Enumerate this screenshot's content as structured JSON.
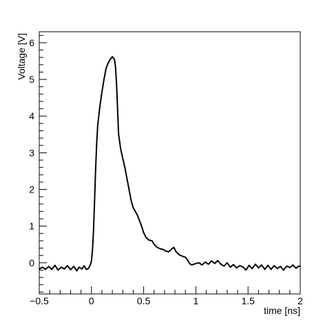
{
  "chart_data": {
    "type": "line",
    "xlabel": "time [ns]",
    "ylabel": "Voltage [V]",
    "xlim": [
      -0.5,
      2
    ],
    "ylim": [
      -0.85,
      6.3
    ],
    "xticks": [
      -0.5,
      0,
      0.5,
      1,
      1.5,
      2
    ],
    "xtick_labels": [
      "−0.5",
      "0",
      "0.5",
      "1",
      "1.5",
      "2"
    ],
    "yticks": [
      0,
      1,
      2,
      3,
      4,
      5,
      6
    ],
    "ytick_labels": [
      "0",
      "1",
      "2",
      "3",
      "4",
      "5",
      "6"
    ],
    "grid": false,
    "series": [
      {
        "color": "#000000",
        "points": [
          [
            -0.5,
            -0.17
          ],
          [
            -0.47,
            -0.12
          ],
          [
            -0.44,
            -0.18
          ],
          [
            -0.41,
            -0.1
          ],
          [
            -0.38,
            -0.18
          ],
          [
            -0.35,
            -0.07
          ],
          [
            -0.32,
            -0.2
          ],
          [
            -0.29,
            -0.12
          ],
          [
            -0.26,
            -0.17
          ],
          [
            -0.23,
            -0.08
          ],
          [
            -0.2,
            -0.19
          ],
          [
            -0.17,
            -0.1
          ],
          [
            -0.14,
            -0.22
          ],
          [
            -0.12,
            -0.12
          ],
          [
            -0.09,
            -0.17
          ],
          [
            -0.07,
            -0.08
          ],
          [
            -0.05,
            -0.18
          ],
          [
            -0.03,
            -0.16
          ],
          [
            -0.01,
            -0.05
          ],
          [
            0.0,
            0.05
          ],
          [
            0.01,
            0.35
          ],
          [
            0.02,
            0.9
          ],
          [
            0.03,
            1.7
          ],
          [
            0.04,
            2.55
          ],
          [
            0.05,
            3.25
          ],
          [
            0.06,
            3.75
          ],
          [
            0.08,
            4.25
          ],
          [
            0.1,
            4.65
          ],
          [
            0.12,
            5.0
          ],
          [
            0.14,
            5.3
          ],
          [
            0.16,
            5.45
          ],
          [
            0.18,
            5.55
          ],
          [
            0.2,
            5.62
          ],
          [
            0.22,
            5.55
          ],
          [
            0.23,
            5.35
          ],
          [
            0.24,
            4.9
          ],
          [
            0.25,
            4.2
          ],
          [
            0.26,
            3.5
          ],
          [
            0.28,
            3.1
          ],
          [
            0.3,
            2.85
          ],
          [
            0.32,
            2.6
          ],
          [
            0.34,
            2.3
          ],
          [
            0.36,
            2.0
          ],
          [
            0.38,
            1.7
          ],
          [
            0.4,
            1.5
          ],
          [
            0.42,
            1.4
          ],
          [
            0.44,
            1.3
          ],
          [
            0.46,
            1.15
          ],
          [
            0.48,
            1.0
          ],
          [
            0.5,
            0.82
          ],
          [
            0.52,
            0.7
          ],
          [
            0.55,
            0.62
          ],
          [
            0.58,
            0.6
          ],
          [
            0.6,
            0.5
          ],
          [
            0.63,
            0.42
          ],
          [
            0.66,
            0.38
          ],
          [
            0.69,
            0.36
          ],
          [
            0.71,
            0.32
          ],
          [
            0.74,
            0.3
          ],
          [
            0.77,
            0.38
          ],
          [
            0.79,
            0.42
          ],
          [
            0.81,
            0.3
          ],
          [
            0.84,
            0.22
          ],
          [
            0.87,
            0.18
          ],
          [
            0.9,
            0.15
          ],
          [
            0.92,
            0.08
          ],
          [
            0.94,
            -0.02
          ],
          [
            0.96,
            -0.06
          ],
          [
            0.98,
            -0.04
          ],
          [
            1.0,
            -0.02
          ],
          [
            1.03,
            0.0
          ],
          [
            1.06,
            -0.06
          ],
          [
            1.09,
            0.02
          ],
          [
            1.12,
            -0.04
          ],
          [
            1.15,
            0.05
          ],
          [
            1.18,
            -0.02
          ],
          [
            1.21,
            0.06
          ],
          [
            1.24,
            -0.04
          ],
          [
            1.27,
            -0.09
          ],
          [
            1.3,
            0.0
          ],
          [
            1.33,
            -0.12
          ],
          [
            1.36,
            -0.05
          ],
          [
            1.39,
            -0.14
          ],
          [
            1.42,
            -0.08
          ],
          [
            1.45,
            -0.11
          ],
          [
            1.48,
            -0.2
          ],
          [
            1.51,
            -0.07
          ],
          [
            1.54,
            -0.16
          ],
          [
            1.57,
            -0.04
          ],
          [
            1.6,
            -0.14
          ],
          [
            1.63,
            -0.06
          ],
          [
            1.66,
            -0.18
          ],
          [
            1.69,
            -0.07
          ],
          [
            1.72,
            -0.18
          ],
          [
            1.75,
            -0.08
          ],
          [
            1.78,
            -0.16
          ],
          [
            1.81,
            -0.1
          ],
          [
            1.84,
            -0.2
          ],
          [
            1.87,
            -0.09
          ],
          [
            1.9,
            -0.13
          ],
          [
            1.93,
            -0.06
          ],
          [
            1.96,
            -0.15
          ],
          [
            1.98,
            -0.1
          ],
          [
            2.0,
            -0.09
          ]
        ]
      }
    ]
  }
}
